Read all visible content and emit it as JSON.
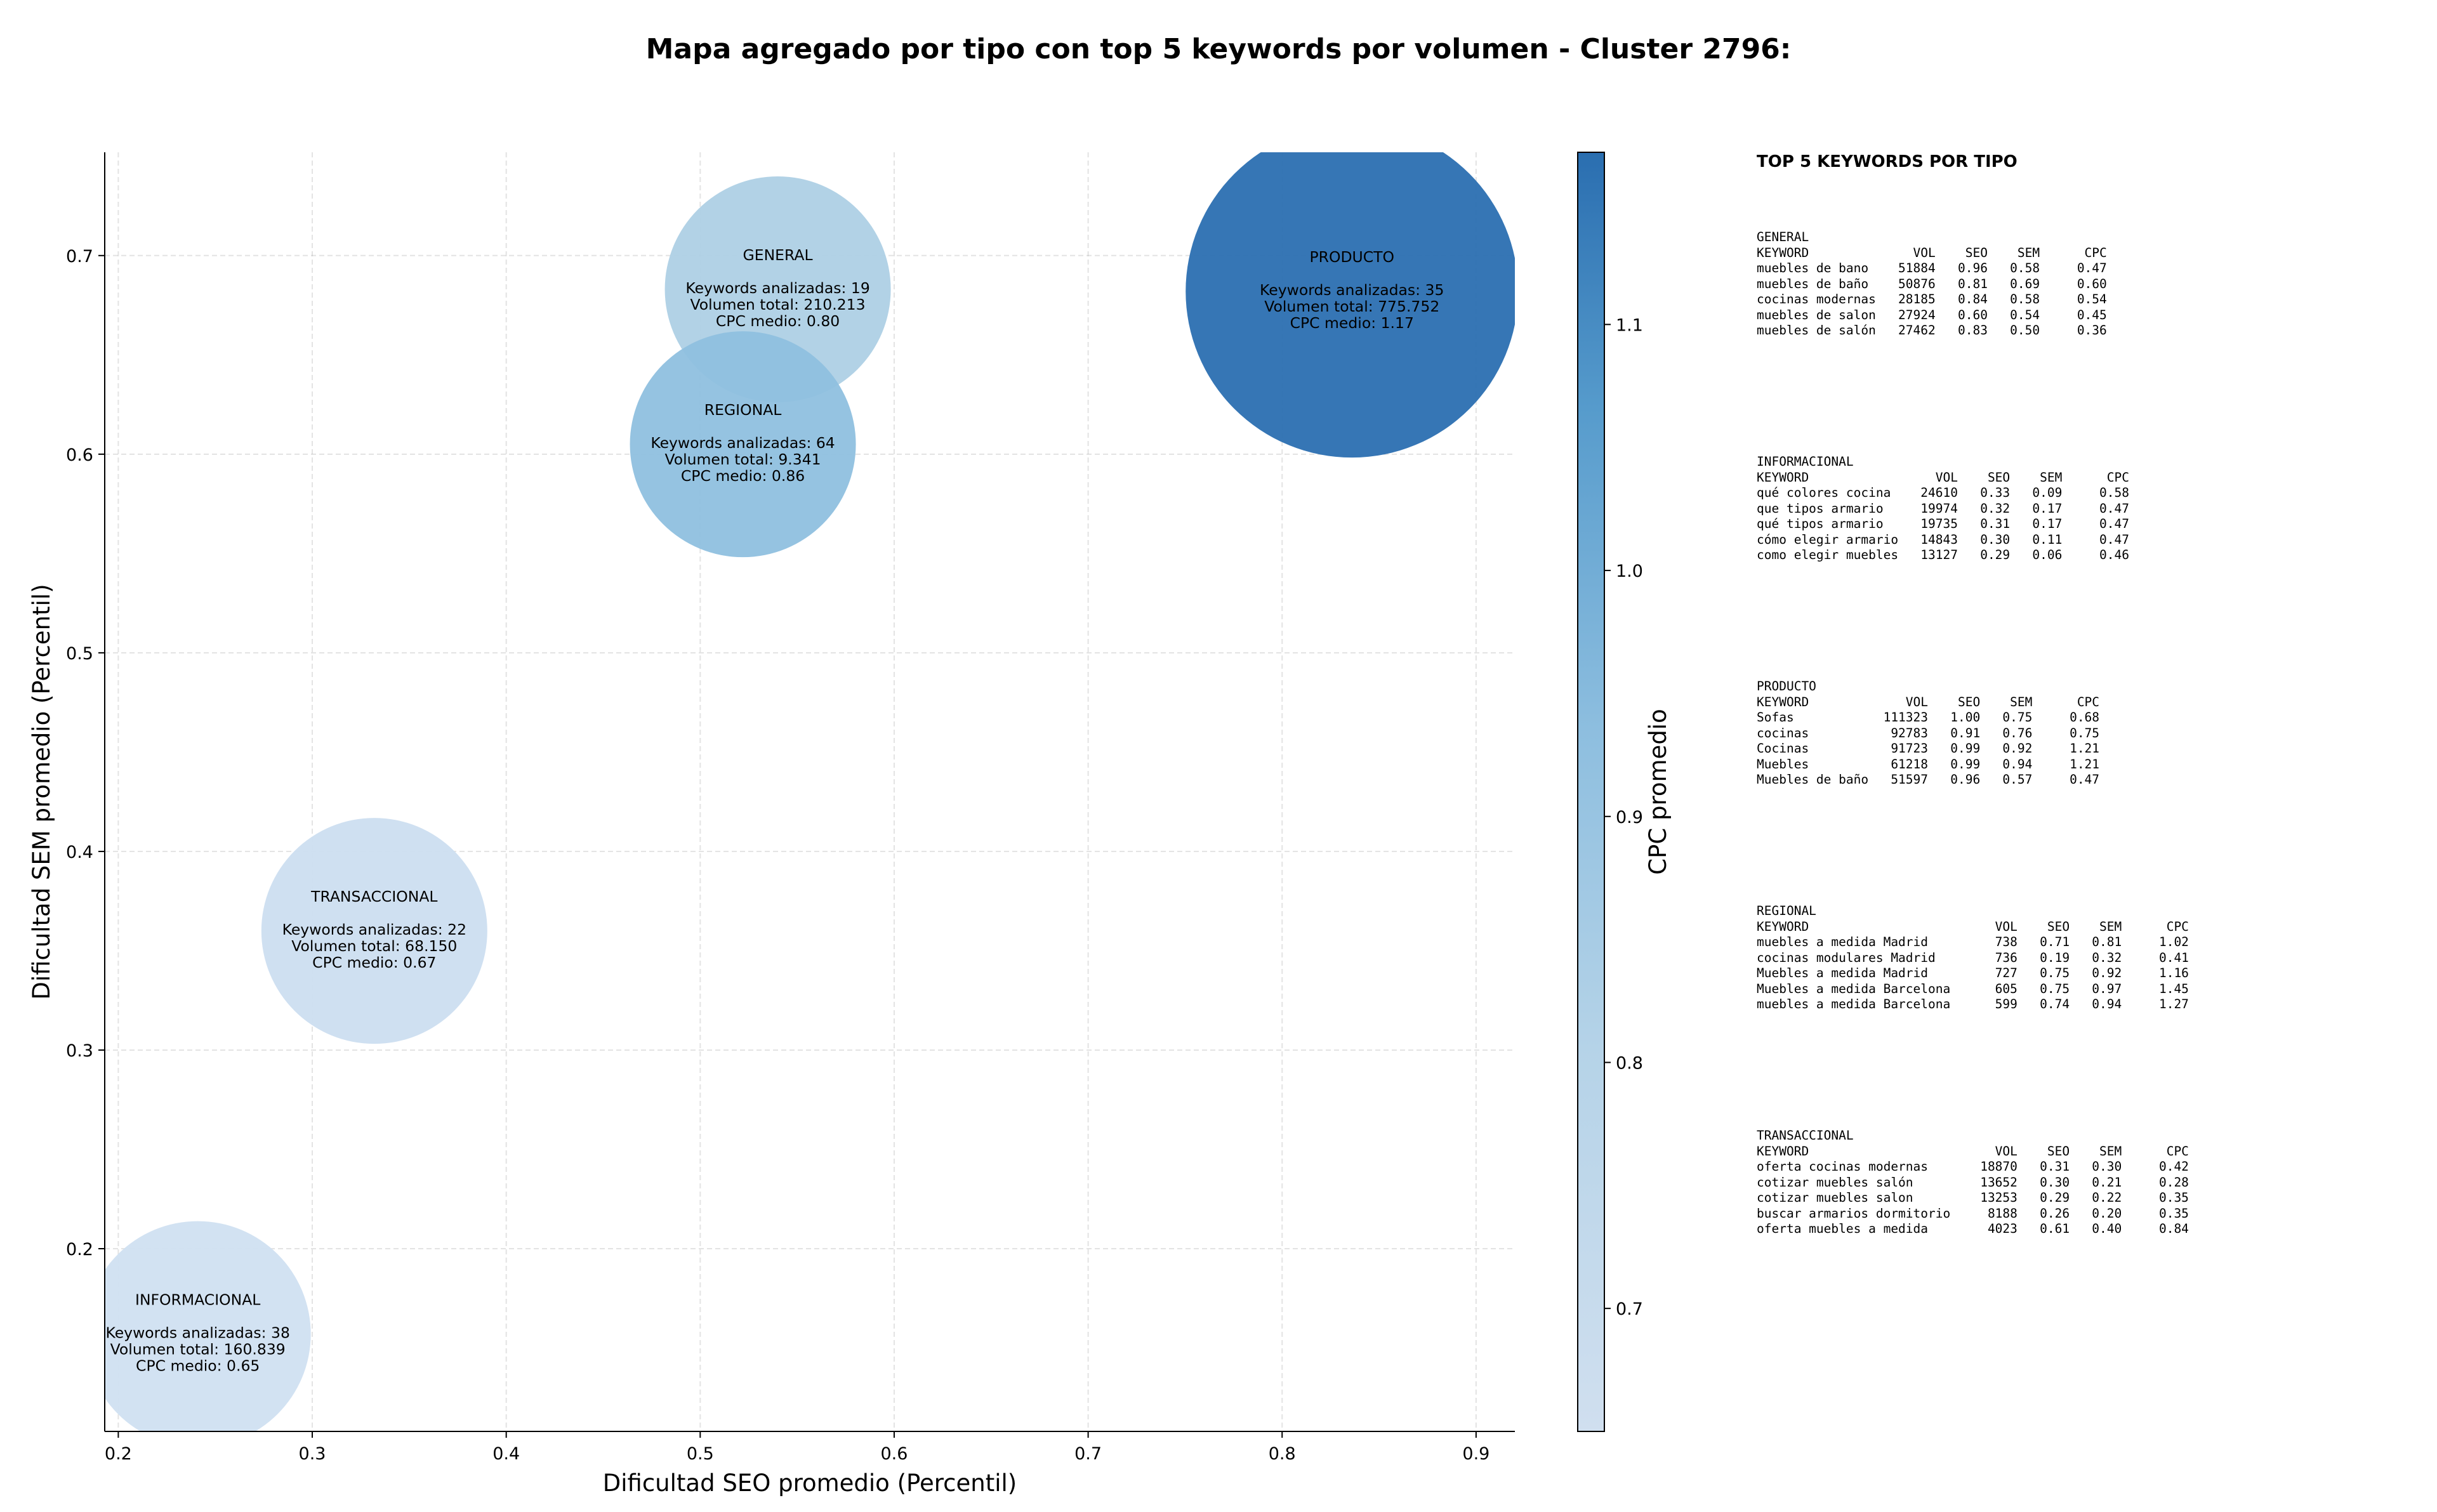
{
  "chart_data": {
    "type": "scatter",
    "title": "Mapa agregado por tipo con top 5 keywords por volumen - Cluster 2796:",
    "xlabel": "Dificultad SEO promedio (Percentil)",
    "ylabel": "Dificultad SEM promedio (Percentil)",
    "xlim": [
      0.193,
      0.92
    ],
    "ylim": [
      0.108,
      0.752
    ],
    "xticks": [
      "0.2",
      "0.3",
      "0.4",
      "0.5",
      "0.6",
      "0.7",
      "0.8",
      "0.9"
    ],
    "yticks": [
      "0.2",
      "0.3",
      "0.4",
      "0.5",
      "0.6",
      "0.7"
    ],
    "grid": true,
    "colorbar": {
      "label": "CPC promedio",
      "min": 0.65,
      "max": 1.17,
      "ticks": [
        "0.7",
        "0.8",
        "0.9",
        "1.0",
        "1.1"
      ],
      "color_low": "#d0dfef",
      "color_high": "#2a6eb0"
    },
    "points": [
      {
        "name": "GENERAL",
        "x": 0.54,
        "y": 0.683,
        "keywords_label": "Keywords analizadas: 19",
        "volume_label": "Volumen total: 210.213",
        "cpc_label": "CPC medio: 0.80",
        "volume": 210213,
        "cpc": 0.8,
        "color": "#aed0e5"
      },
      {
        "name": "PRODUCTO",
        "x": 0.836,
        "y": 0.682,
        "keywords_label": "Keywords analizadas: 35",
        "volume_label": "Volumen total: 775.752",
        "cpc_label": "CPC medio: 1.17",
        "volume": 775752,
        "cpc": 1.17,
        "color": "#2b6fb1"
      },
      {
        "name": "REGIONAL",
        "x": 0.522,
        "y": 0.605,
        "keywords_label": "Keywords analizadas: 64",
        "volume_label": "Volumen total: 9.341",
        "cpc_label": "CPC medio: 0.86",
        "volume": 9341,
        "cpc": 0.86,
        "color": "#8fc0df"
      },
      {
        "name": "TRANSACCIONAL",
        "x": 0.332,
        "y": 0.36,
        "keywords_label": "Keywords analizadas: 22",
        "volume_label": "Volumen total: 68.150",
        "cpc_label": "CPC medio: 0.67",
        "volume": 68150,
        "cpc": 0.67,
        "color": "#ccdef0"
      },
      {
        "name": "INFORMACIONAL",
        "x": 0.241,
        "y": 0.157,
        "keywords_label": "Keywords analizadas: 38",
        "volume_label": "Volumen total: 160.839",
        "cpc_label": "CPC medio: 0.65",
        "volume": 160839,
        "cpc": 0.65,
        "color": "#d0e0f1"
      }
    ]
  },
  "keywords_panel": {
    "title": "TOP 5 KEYWORDS POR TIPO",
    "blocks": [
      {
        "name": "GENERAL",
        "lines": [
          "GENERAL",
          "KEYWORD              VOL    SEO    SEM      CPC",
          "muebles de bano    51884   0.96   0.58     0.47",
          "muebles de baño    50876   0.81   0.69     0.60",
          "cocinas modernas   28185   0.84   0.58     0.54",
          "muebles de salon   27924   0.60   0.54     0.45",
          "muebles de salón   27462   0.83   0.50     0.36"
        ]
      },
      {
        "name": "INFORMACIONAL",
        "lines": [
          "INFORMACIONAL",
          "KEYWORD                 VOL    SEO    SEM      CPC",
          "qué colores cocina    24610   0.33   0.09     0.58",
          "que tipos armario     19974   0.32   0.17     0.47",
          "qué tipos armario     19735   0.31   0.17     0.47",
          "cómo elegir armario   14843   0.30   0.11     0.47",
          "como elegir muebles   13127   0.29   0.06     0.46"
        ]
      },
      {
        "name": "PRODUCTO",
        "lines": [
          "PRODUCTO",
          "KEYWORD             VOL    SEO    SEM      CPC",
          "Sofas            111323   1.00   0.75     0.68",
          "cocinas           92783   0.91   0.76     0.75",
          "Cocinas           91723   0.99   0.92     1.21",
          "Muebles           61218   0.99   0.94     1.21",
          "Muebles de baño   51597   0.96   0.57     0.47"
        ]
      },
      {
        "name": "REGIONAL",
        "lines": [
          "REGIONAL",
          "KEYWORD                         VOL    SEO    SEM      CPC",
          "muebles a medida Madrid         738   0.71   0.81     1.02",
          "cocinas modulares Madrid        736   0.19   0.32     0.41",
          "Muebles a medida Madrid         727   0.75   0.92     1.16",
          "Muebles a medida Barcelona      605   0.75   0.97     1.45",
          "muebles a medida Barcelona      599   0.74   0.94     1.27"
        ]
      },
      {
        "name": "TRANSACCIONAL",
        "lines": [
          "TRANSACCIONAL",
          "KEYWORD                         VOL    SEO    SEM      CPC",
          "oferta cocinas modernas       18870   0.31   0.30     0.42",
          "cotizar muebles salón         13652   0.30   0.21     0.28",
          "cotizar muebles salon         13253   0.29   0.22     0.35",
          "buscar armarios dormitorio     8188   0.26   0.20     0.35",
          "oferta muebles a medida        4023   0.61   0.40     0.84"
        ]
      }
    ]
  }
}
